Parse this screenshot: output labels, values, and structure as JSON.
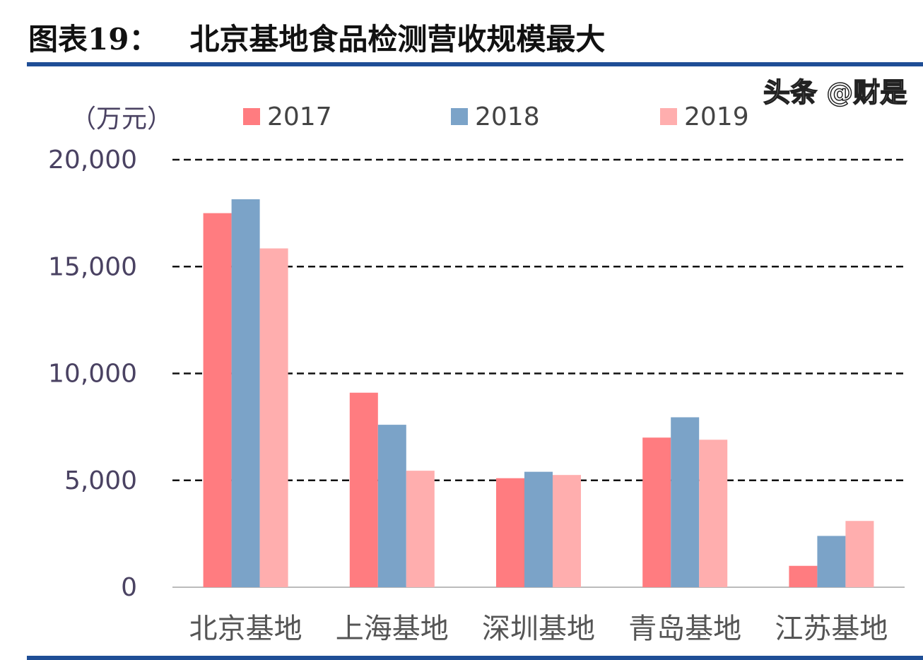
{
  "title": "图表19：   北京基地食品检测营收规模最大",
  "watermark": "头条 @财是",
  "chart_data": {
    "type": "bar",
    "title": "图表19：   北京基地食品检测营收规模最大",
    "ylabel": "（万元）",
    "xlabel": "",
    "ylim": [
      0,
      20000
    ],
    "yticks": [
      0,
      5000,
      10000,
      15000,
      20000
    ],
    "ytick_labels": [
      "0",
      "5,000",
      "10,000",
      "15,000",
      "20,000"
    ],
    "grid": "dashed horizontal",
    "legend_position": "top",
    "categories": [
      "北京基地",
      "上海基地",
      "深圳基地",
      "青岛基地",
      "江苏基地"
    ],
    "series": [
      {
        "name": "2017",
        "color": "#ff7c80",
        "values": [
          17500,
          9100,
          5100,
          7000,
          1000
        ]
      },
      {
        "name": "2018",
        "color": "#7ba3c8",
        "values": [
          18150,
          7600,
          5400,
          7950,
          2400
        ]
      },
      {
        "name": "2019",
        "color": "#ffaeae",
        "values": [
          15850,
          5450,
          5250,
          6900,
          3100
        ]
      }
    ]
  }
}
